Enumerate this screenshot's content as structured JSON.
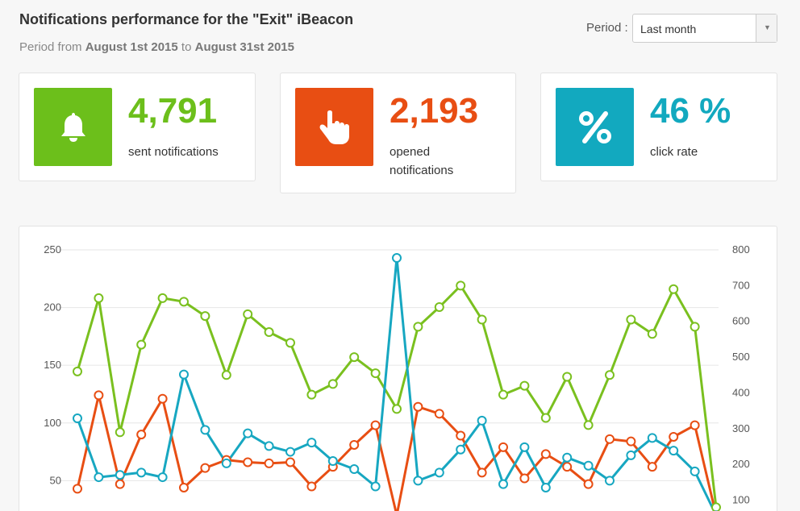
{
  "header": {
    "title": "Notifications performance for the \"Exit\" iBeacon",
    "period_prefix": "Period from",
    "period_start": "August 1st 2015",
    "period_mid": "to",
    "period_end": "August 31st 2015"
  },
  "period_select": {
    "label": "Period :",
    "value": "Last month"
  },
  "stats": [
    {
      "icon": "bell-icon",
      "value": "4,791",
      "label": "sent notifications",
      "color": "#6cbf1b"
    },
    {
      "icon": "hand-pointer-icon",
      "value": "2,193",
      "label": "opened notifications",
      "color": "#e84e13"
    },
    {
      "icon": "percent-icon",
      "value": "46 %",
      "label": "click rate",
      "color": "#12a9bf"
    }
  ],
  "chart_data": {
    "type": "line",
    "x": [
      1,
      2,
      3,
      4,
      5,
      6,
      7,
      8,
      9,
      10,
      11,
      12,
      13,
      14,
      15,
      16,
      17,
      18,
      19,
      20,
      21,
      22,
      23,
      24,
      25,
      26,
      27,
      28,
      29,
      30,
      31
    ],
    "y_left_ticks": [
      "250",
      "200",
      "150",
      "100",
      "50"
    ],
    "y_right_ticks": [
      "800",
      "700",
      "600",
      "500",
      "400",
      "300",
      "200",
      "100"
    ],
    "ylim_left": [
      30,
      250
    ],
    "ylim_right": [
      90,
      800
    ],
    "grid": true,
    "series": [
      {
        "color": "#7ac01f",
        "axis": "right",
        "values": [
          460,
          665,
          290,
          535,
          665,
          655,
          615,
          450,
          620,
          570,
          540,
          395,
          425,
          500,
          455,
          355,
          585,
          640,
          700,
          605,
          395,
          420,
          330,
          445,
          310,
          450,
          605,
          565,
          690,
          585,
          80
        ]
      },
      {
        "color": "#e84e13",
        "axis": "left",
        "values": [
          43,
          124,
          47,
          90,
          121,
          44,
          61,
          68,
          66,
          65,
          66,
          45,
          62,
          81,
          98,
          20,
          114,
          108,
          89,
          57,
          79,
          52,
          73,
          62,
          47,
          86,
          84,
          62,
          88,
          98,
          20
        ]
      },
      {
        "color": "#17a7c1",
        "axis": "left",
        "values": [
          104,
          53,
          55,
          57,
          53,
          142,
          94,
          65,
          91,
          80,
          75,
          83,
          67,
          60,
          45,
          243,
          50,
          57,
          77,
          102,
          47,
          79,
          44,
          70,
          63,
          50,
          72,
          87,
          76,
          58,
          20
        ]
      }
    ]
  }
}
